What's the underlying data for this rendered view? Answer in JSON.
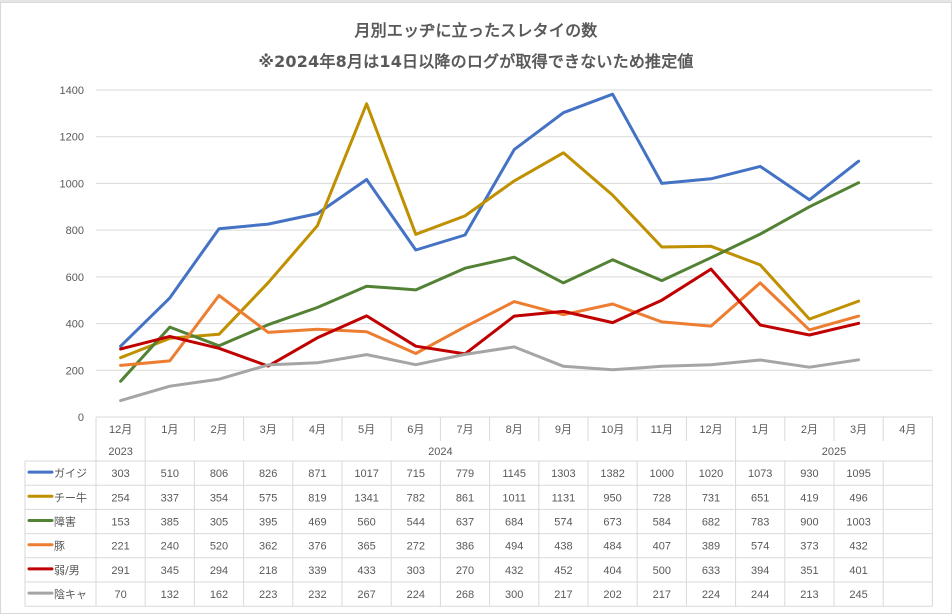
{
  "chart_data": {
    "type": "line",
    "title": "月別エッヂに立ったスレタイの数",
    "subtitle": "※2024年8月は14日以降のログが取得できないため推定値",
    "xlabel": "",
    "ylabel": "",
    "ylim": [
      0,
      1400
    ],
    "yticks": [
      0,
      200,
      400,
      600,
      800,
      1000,
      1200,
      1400
    ],
    "grid": true,
    "legend": "data-table-left",
    "categories": [
      "12月",
      "1月",
      "2月",
      "3月",
      "4月",
      "5月",
      "6月",
      "7月",
      "8月",
      "9月",
      "10月",
      "11月",
      "12月",
      "1月",
      "2月",
      "3月",
      "4月"
    ],
    "year_groups": [
      {
        "label": "2023",
        "start": 0,
        "span": 1
      },
      {
        "label": "2024",
        "start": 1,
        "span": 12
      },
      {
        "label": "2025",
        "start": 13,
        "span": 4
      }
    ],
    "series": [
      {
        "name": "ガイジ",
        "color": "#4472c4",
        "values": [
          303,
          510,
          806,
          826,
          871,
          1017,
          715,
          779,
          1145,
          1303,
          1382,
          1000,
          1020,
          1073,
          930,
          1095,
          null
        ]
      },
      {
        "name": "チー牛",
        "color": "#bf9000",
        "values": [
          254,
          337,
          354,
          575,
          819,
          1341,
          782,
          861,
          1011,
          1131,
          950,
          728,
          731,
          651,
          419,
          496,
          null
        ]
      },
      {
        "name": "障害",
        "color": "#548235",
        "values": [
          153,
          385,
          305,
          395,
          469,
          560,
          544,
          637,
          684,
          574,
          673,
          584,
          682,
          783,
          900,
          1003,
          null
        ]
      },
      {
        "name": "豚",
        "color": "#ed7d31",
        "values": [
          221,
          240,
          520,
          362,
          376,
          365,
          272,
          386,
          494,
          438,
          484,
          407,
          389,
          574,
          373,
          432,
          null
        ]
      },
      {
        "name": "弱/男",
        "color": "#c00000",
        "values": [
          291,
          345,
          294,
          218,
          339,
          433,
          303,
          270,
          432,
          452,
          404,
          500,
          633,
          394,
          351,
          401,
          null
        ]
      },
      {
        "name": "陰キャ",
        "color": "#a5a5a5",
        "values": [
          70,
          132,
          162,
          223,
          232,
          267,
          224,
          268,
          300,
          217,
          202,
          217,
          224,
          244,
          213,
          245,
          null
        ]
      }
    ]
  }
}
